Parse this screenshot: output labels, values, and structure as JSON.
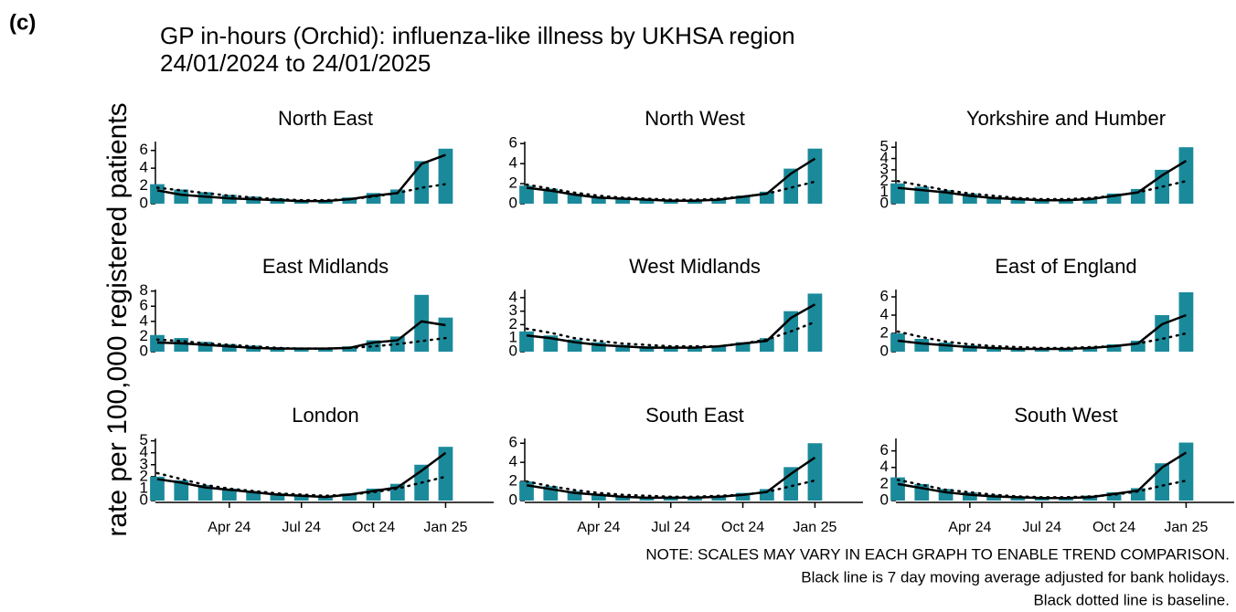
{
  "panel_label": "(c)",
  "title": "GP in-hours (Orchid): influenza-like illness by UKHSA region 24/01/2024 to 24/01/2025",
  "ylabel": "rate per 100,000 registered patients",
  "notes": [
    "NOTE: SCALES MAY VARY IN EACH GRAPH TO ENABLE TREND COMPARISON.",
    "Black line is 7 day moving average adjusted for bank holidays.",
    "Black dotted line is baseline."
  ],
  "chart_data": [
    {
      "type": "bar",
      "title": "North East",
      "x": [
        "2024-01",
        "2024-02",
        "2024-03",
        "2024-04",
        "2024-05",
        "2024-06",
        "2024-07",
        "2024-08",
        "2024-09",
        "2024-10",
        "2024-11",
        "2024-12",
        "2025-01"
      ],
      "xlim": [
        "2024-01",
        "2025-03"
      ],
      "ylim": [
        0,
        7
      ],
      "yticks": [
        0,
        2,
        4,
        6
      ],
      "series": [
        {
          "type": "bar",
          "color": "#1a8a9b",
          "values": [
            2.2,
            1.6,
            1.3,
            1.0,
            0.8,
            0.6,
            0.4,
            0.4,
            0.7,
            1.2,
            1.6,
            4.8,
            6.2
          ]
        },
        {
          "type": "line",
          "color": "#000000",
          "values": [
            1.5,
            1.0,
            0.8,
            0.6,
            0.5,
            0.4,
            0.3,
            0.3,
            0.5,
            0.9,
            1.2,
            4.5,
            5.5
          ]
        },
        {
          "type": "dotted",
          "color": "#000000",
          "values": [
            1.8,
            1.5,
            1.2,
            0.9,
            0.7,
            0.5,
            0.4,
            0.4,
            0.5,
            0.8,
            1.2,
            1.8,
            2.2
          ]
        }
      ]
    },
    {
      "type": "bar",
      "title": "North West",
      "x": [
        "2024-01",
        "2024-02",
        "2024-03",
        "2024-04",
        "2024-05",
        "2024-06",
        "2024-07",
        "2024-08",
        "2024-09",
        "2024-10",
        "2024-11",
        "2024-12",
        "2025-01"
      ],
      "xlim": [
        "2024-01",
        "2025-03"
      ],
      "ylim": [
        0,
        6.2
      ],
      "yticks": [
        0,
        2,
        4,
        6
      ],
      "series": [
        {
          "type": "bar",
          "color": "#1a8a9b",
          "values": [
            1.8,
            1.5,
            1.0,
            0.7,
            0.5,
            0.4,
            0.4,
            0.4,
            0.5,
            0.8,
            1.2,
            3.5,
            5.5
          ]
        },
        {
          "type": "line",
          "color": "#000000",
          "values": [
            1.6,
            1.3,
            0.9,
            0.6,
            0.5,
            0.4,
            0.3,
            0.3,
            0.4,
            0.7,
            1.0,
            3.0,
            4.5
          ]
        },
        {
          "type": "dotted",
          "color": "#000000",
          "values": [
            1.9,
            1.5,
            1.1,
            0.8,
            0.6,
            0.5,
            0.4,
            0.4,
            0.5,
            0.7,
            1.0,
            1.6,
            2.2
          ]
        }
      ]
    },
    {
      "type": "bar",
      "title": "Yorkshire and Humber",
      "x": [
        "2024-01",
        "2024-02",
        "2024-03",
        "2024-04",
        "2024-05",
        "2024-06",
        "2024-07",
        "2024-08",
        "2024-09",
        "2024-10",
        "2024-11",
        "2024-12",
        "2025-01"
      ],
      "xlim": [
        "2024-01",
        "2025-03"
      ],
      "ylim": [
        0,
        5.5
      ],
      "yticks": [
        0,
        1,
        2,
        3,
        4,
        5
      ],
      "series": [
        {
          "type": "bar",
          "color": "#1a8a9b",
          "values": [
            1.8,
            1.5,
            1.2,
            0.9,
            0.6,
            0.5,
            0.4,
            0.4,
            0.5,
            0.9,
            1.3,
            3.0,
            5.0
          ]
        },
        {
          "type": "line",
          "color": "#000000",
          "values": [
            1.4,
            1.2,
            1.0,
            0.7,
            0.5,
            0.4,
            0.3,
            0.3,
            0.4,
            0.7,
            1.0,
            2.5,
            3.8
          ]
        },
        {
          "type": "dotted",
          "color": "#000000",
          "values": [
            2.0,
            1.6,
            1.2,
            0.9,
            0.7,
            0.5,
            0.4,
            0.4,
            0.5,
            0.7,
            1.0,
            1.5,
            2.0
          ]
        }
      ]
    },
    {
      "type": "bar",
      "title": "East Midlands",
      "x": [
        "2024-01",
        "2024-02",
        "2024-03",
        "2024-04",
        "2024-05",
        "2024-06",
        "2024-07",
        "2024-08",
        "2024-09",
        "2024-10",
        "2024-11",
        "2024-12",
        "2025-01"
      ],
      "xlim": [
        "2024-01",
        "2025-03"
      ],
      "ylim": [
        0,
        8.2
      ],
      "yticks": [
        0,
        2,
        4,
        6,
        8
      ],
      "series": [
        {
          "type": "bar",
          "color": "#1a8a9b",
          "values": [
            2.2,
            1.8,
            1.3,
            1.0,
            0.8,
            0.6,
            0.5,
            0.5,
            0.7,
            1.5,
            2.0,
            7.5,
            4.5
          ]
        },
        {
          "type": "line",
          "color": "#000000",
          "values": [
            1.2,
            1.1,
            0.9,
            0.7,
            0.5,
            0.4,
            0.4,
            0.4,
            0.5,
            1.2,
            1.5,
            4.0,
            3.5
          ]
        },
        {
          "type": "dotted",
          "color": "#000000",
          "values": [
            1.6,
            1.4,
            1.1,
            0.9,
            0.7,
            0.5,
            0.4,
            0.4,
            0.5,
            0.7,
            1.0,
            1.4,
            1.8
          ]
        }
      ]
    },
    {
      "type": "bar",
      "title": "West Midlands",
      "x": [
        "2024-01",
        "2024-02",
        "2024-03",
        "2024-04",
        "2024-05",
        "2024-06",
        "2024-07",
        "2024-08",
        "2024-09",
        "2024-10",
        "2024-11",
        "2024-12",
        "2025-01"
      ],
      "xlim": [
        "2024-01",
        "2025-03"
      ],
      "ylim": [
        0,
        4.6
      ],
      "yticks": [
        0,
        1,
        2,
        3,
        4
      ],
      "series": [
        {
          "type": "bar",
          "color": "#1a8a9b",
          "values": [
            1.5,
            1.2,
            0.9,
            0.7,
            0.5,
            0.4,
            0.3,
            0.3,
            0.4,
            0.7,
            1.0,
            3.0,
            4.3
          ]
        },
        {
          "type": "line",
          "color": "#000000",
          "values": [
            1.2,
            1.0,
            0.7,
            0.5,
            0.4,
            0.3,
            0.3,
            0.3,
            0.4,
            0.6,
            0.8,
            2.5,
            3.5
          ]
        },
        {
          "type": "dotted",
          "color": "#000000",
          "values": [
            1.7,
            1.4,
            1.0,
            0.8,
            0.6,
            0.5,
            0.4,
            0.4,
            0.4,
            0.6,
            0.9,
            1.5,
            2.2
          ]
        }
      ]
    },
    {
      "type": "bar",
      "title": "East of England",
      "x": [
        "2024-01",
        "2024-02",
        "2024-03",
        "2024-04",
        "2024-05",
        "2024-06",
        "2024-07",
        "2024-08",
        "2024-09",
        "2024-10",
        "2024-11",
        "2024-12",
        "2025-01"
      ],
      "xlim": [
        "2024-01",
        "2025-03"
      ],
      "ylim": [
        0,
        6.8
      ],
      "yticks": [
        0,
        2,
        4,
        6
      ],
      "series": [
        {
          "type": "bar",
          "color": "#1a8a9b",
          "values": [
            2.0,
            1.4,
            1.0,
            0.7,
            0.5,
            0.4,
            0.4,
            0.4,
            0.5,
            0.8,
            1.2,
            4.0,
            6.5
          ]
        },
        {
          "type": "line",
          "color": "#000000",
          "values": [
            1.2,
            0.9,
            0.7,
            0.5,
            0.4,
            0.3,
            0.3,
            0.3,
            0.4,
            0.6,
            0.9,
            3.0,
            4.0
          ]
        },
        {
          "type": "dotted",
          "color": "#000000",
          "values": [
            2.2,
            1.6,
            1.1,
            0.8,
            0.6,
            0.5,
            0.4,
            0.4,
            0.5,
            0.6,
            0.9,
            1.4,
            2.0
          ]
        }
      ]
    },
    {
      "type": "bar",
      "title": "London",
      "x": [
        "2024-01",
        "2024-02",
        "2024-03",
        "2024-04",
        "2024-05",
        "2024-06",
        "2024-07",
        "2024-08",
        "2024-09",
        "2024-10",
        "2024-11",
        "2024-12",
        "2025-01"
      ],
      "xlim": [
        "2024-01",
        "2025-03"
      ],
      "ylim": [
        0,
        5.2
      ],
      "yticks": [
        0,
        1,
        2,
        3,
        4,
        5
      ],
      "xticks": [
        {
          "value": "2024-04",
          "label": "Apr 24"
        },
        {
          "value": "2024-07",
          "label": "Jul 24"
        },
        {
          "value": "2024-10",
          "label": "Oct 24"
        },
        {
          "value": "2025-01",
          "label": "Jan 25"
        }
      ],
      "series": [
        {
          "type": "bar",
          "color": "#1a8a9b",
          "values": [
            2.0,
            1.7,
            1.3,
            1.0,
            0.8,
            0.6,
            0.5,
            0.4,
            0.6,
            1.0,
            1.4,
            3.0,
            4.5
          ]
        },
        {
          "type": "line",
          "color": "#000000",
          "values": [
            1.8,
            1.5,
            1.1,
            0.9,
            0.7,
            0.5,
            0.4,
            0.3,
            0.5,
            0.8,
            1.1,
            2.5,
            4.0
          ]
        },
        {
          "type": "dotted",
          "color": "#000000",
          "values": [
            2.3,
            1.8,
            1.3,
            1.0,
            0.8,
            0.6,
            0.5,
            0.4,
            0.5,
            0.7,
            1.0,
            1.5,
            2.0
          ]
        }
      ]
    },
    {
      "type": "bar",
      "title": "South East",
      "x": [
        "2024-01",
        "2024-02",
        "2024-03",
        "2024-04",
        "2024-05",
        "2024-06",
        "2024-07",
        "2024-08",
        "2024-09",
        "2024-10",
        "2024-11",
        "2024-12",
        "2025-01"
      ],
      "xlim": [
        "2024-01",
        "2025-03"
      ],
      "ylim": [
        0,
        6.5
      ],
      "yticks": [
        0,
        2,
        4,
        6
      ],
      "xticks": [
        {
          "value": "2024-04",
          "label": "Apr 24"
        },
        {
          "value": "2024-07",
          "label": "Jul 24"
        },
        {
          "value": "2024-10",
          "label": "Oct 24"
        },
        {
          "value": "2025-01",
          "label": "Jan 25"
        }
      ],
      "series": [
        {
          "type": "bar",
          "color": "#1a8a9b",
          "values": [
            2.0,
            1.5,
            1.0,
            0.7,
            0.5,
            0.4,
            0.4,
            0.4,
            0.5,
            0.8,
            1.2,
            3.5,
            6.0
          ]
        },
        {
          "type": "line",
          "color": "#000000",
          "values": [
            1.6,
            1.2,
            0.8,
            0.6,
            0.4,
            0.3,
            0.3,
            0.3,
            0.4,
            0.6,
            0.9,
            2.8,
            4.5
          ]
        },
        {
          "type": "dotted",
          "color": "#000000",
          "values": [
            2.0,
            1.5,
            1.1,
            0.8,
            0.6,
            0.5,
            0.4,
            0.4,
            0.5,
            0.6,
            0.9,
            1.5,
            2.1
          ]
        }
      ]
    },
    {
      "type": "bar",
      "title": "South West",
      "x": [
        "2024-01",
        "2024-02",
        "2024-03",
        "2024-04",
        "2024-05",
        "2024-06",
        "2024-07",
        "2024-08",
        "2024-09",
        "2024-10",
        "2024-11",
        "2024-12",
        "2025-01"
      ],
      "xlim": [
        "2024-01",
        "2025-03"
      ],
      "ylim": [
        0,
        7.5
      ],
      "yticks": [
        0,
        2,
        4,
        6
      ],
      "xticks": [
        {
          "value": "2024-04",
          "label": "Apr 24"
        },
        {
          "value": "2024-07",
          "label": "Jul 24"
        },
        {
          "value": "2024-10",
          "label": "Oct 24"
        },
        {
          "value": "2025-01",
          "label": "Jan 25"
        }
      ],
      "series": [
        {
          "type": "bar",
          "color": "#1a8a9b",
          "values": [
            2.8,
            2.0,
            1.4,
            1.0,
            0.7,
            0.5,
            0.4,
            0.4,
            0.6,
            1.0,
            1.5,
            4.5,
            7.0
          ]
        },
        {
          "type": "line",
          "color": "#000000",
          "values": [
            2.0,
            1.5,
            1.0,
            0.7,
            0.5,
            0.4,
            0.3,
            0.3,
            0.4,
            0.8,
            1.2,
            4.0,
            5.8
          ]
        },
        {
          "type": "dotted",
          "color": "#000000",
          "values": [
            2.5,
            1.9,
            1.3,
            1.0,
            0.7,
            0.5,
            0.4,
            0.4,
            0.5,
            0.7,
            1.1,
            1.8,
            2.4
          ]
        }
      ]
    }
  ]
}
